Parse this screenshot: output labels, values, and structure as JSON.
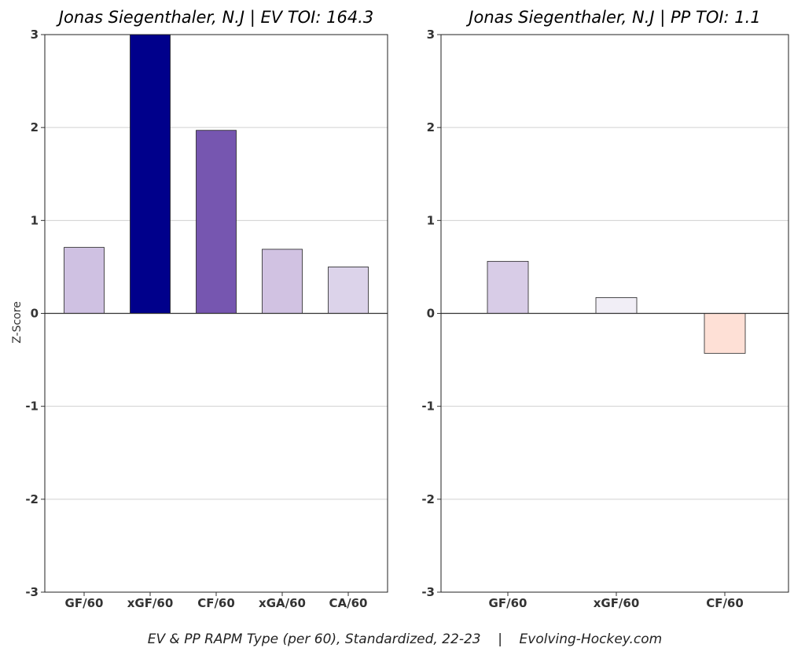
{
  "chart_data": [
    {
      "type": "bar",
      "title": "Jonas Siegenthaler, N.J  |  EV TOI: 164.3",
      "ylabel": "Z-Score",
      "xlabel": "",
      "ylim": [
        -3,
        3
      ],
      "yticks": [
        "3",
        "2",
        "1",
        "0",
        "-1",
        "-2",
        "-3"
      ],
      "grid": "horizontal",
      "categories": [
        "GF/60",
        "xGF/60",
        "CF/60",
        "xGA/60",
        "CA/60"
      ],
      "values": [
        0.71,
        3.0,
        1.97,
        0.69,
        0.5
      ],
      "colors": [
        "#cfc1e2",
        "#00008b",
        "#7656b0",
        "#d1c2e2",
        "#dcd3ea"
      ]
    },
    {
      "type": "bar",
      "title": "Jonas Siegenthaler, N.J  |  PP TOI: 1.1",
      "ylabel": "",
      "xlabel": "",
      "ylim": [
        -3,
        3
      ],
      "yticks": [
        "3",
        "2",
        "1",
        "0",
        "-1",
        "-2",
        "-3"
      ],
      "grid": "horizontal",
      "categories": [
        "GF/60",
        "xGF/60",
        "CF/60"
      ],
      "values": [
        0.56,
        0.17,
        -0.43
      ],
      "colors": [
        "#d8cce7",
        "#f1eef6",
        "#fee0d6"
      ]
    }
  ],
  "caption": "EV & PP RAPM Type (per 60), Standardized, 22-23    |    Evolving-Hockey.com"
}
